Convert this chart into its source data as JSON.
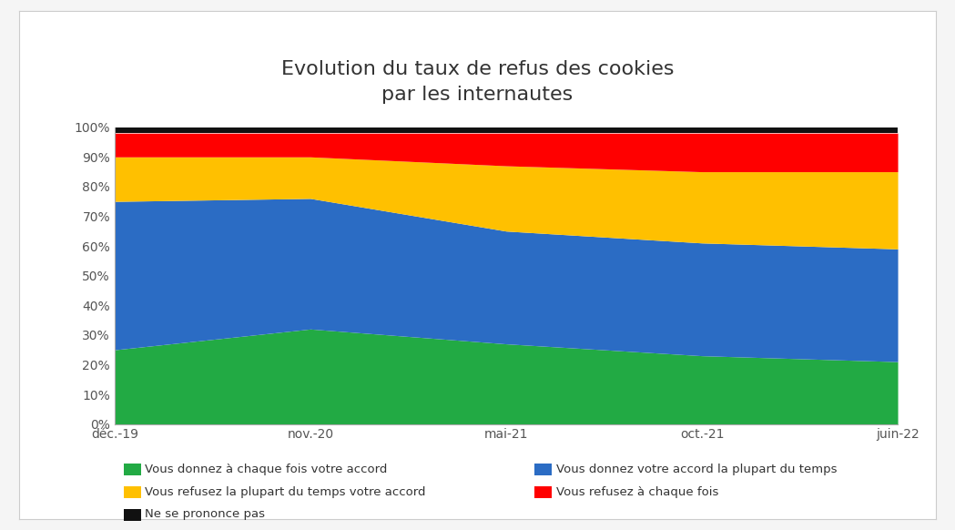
{
  "title": "Evolution du taux de refus des cookies\npar les internautes",
  "x_labels": [
    "déc.-19",
    "nov.-20",
    "mai-21",
    "oct.-21",
    "juin-22"
  ],
  "series": {
    "Vous donnez à chaque fois votre accord": [
      25,
      32,
      27,
      23,
      21
    ],
    "Vous donnez votre accord la plupart du temps": [
      50,
      44,
      38,
      38,
      38
    ],
    "Vous refusez la plupart du temps votre accord": [
      15,
      14,
      22,
      24,
      26
    ],
    "Vous refusez à chaque fois": [
      8,
      8,
      11,
      13,
      13
    ],
    "Ne se prononce pas": [
      2,
      2,
      2,
      2,
      2
    ]
  },
  "colors": {
    "Vous donnez à chaque fois votre accord": "#22AA44",
    "Vous donnez votre accord la plupart du temps": "#2B6CC4",
    "Vous refusez la plupart du temps votre accord": "#FFC000",
    "Vous refusez à chaque fois": "#FF0000",
    "Ne se prononce pas": "#111111"
  },
  "legend_order": [
    "Vous donnez à chaque fois votre accord",
    "Vous donnez votre accord la plupart du temps",
    "Vous refusez la plupart du temps votre accord",
    "Vous refusez à chaque fois",
    "Ne se prononce pas"
  ],
  "legend_col1": [
    "Vous donnez à chaque fois votre accord",
    "Vous refusez la plupart du temps votre accord",
    "Ne se prononce pas"
  ],
  "legend_col2": [
    "Vous donnez votre accord la plupart du temps",
    "Vous refusez à chaque fois"
  ],
  "yticks": [
    0,
    10,
    20,
    30,
    40,
    50,
    60,
    70,
    80,
    90,
    100
  ],
  "ytick_labels": [
    "0%",
    "10%",
    "20%",
    "30%",
    "40%",
    "50%",
    "60%",
    "70%",
    "80%",
    "90%",
    "100%"
  ],
  "background_color": "#ffffff",
  "outer_bg": "#f5f5f5",
  "title_fontsize": 16,
  "tick_fontsize": 10,
  "legend_fontsize": 9.5
}
